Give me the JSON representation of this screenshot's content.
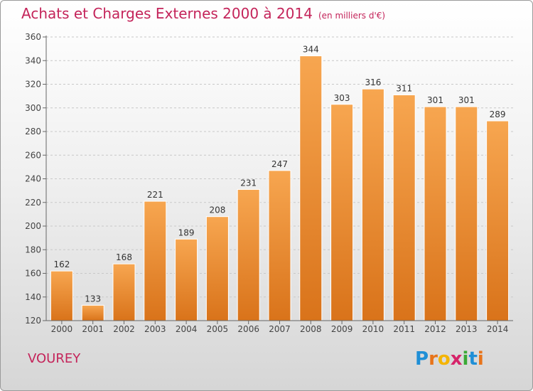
{
  "header": {
    "title": "Achats et Charges Externes 2000 à 2014",
    "subtitle": "(en milliers d'€)"
  },
  "footer": {
    "place": "VOUREY",
    "logo": "Proxiti"
  },
  "colors": {
    "accent": "#c4245a",
    "bar_light": "#f7a650",
    "bar_dark": "#d9731a"
  },
  "chart_data": {
    "type": "bar",
    "title": "Achats et Charges Externes 2000 à 2014",
    "subtitle": "(en milliers d'€)",
    "xlabel": "",
    "ylabel": "",
    "categories": [
      "2000",
      "2001",
      "2002",
      "2003",
      "2004",
      "2005",
      "2006",
      "2007",
      "2008",
      "2009",
      "2010",
      "2011",
      "2012",
      "2013",
      "2014"
    ],
    "values": [
      162,
      133,
      168,
      221,
      189,
      208,
      231,
      247,
      344,
      303,
      316,
      311,
      301,
      301,
      289
    ],
    "data_labels": [
      "162",
      "133",
      "168",
      "221",
      "189",
      "208",
      "231",
      "247",
      "344",
      "303",
      "316",
      "311",
      "301",
      "301",
      "289"
    ],
    "ylim": [
      120,
      360
    ],
    "yticks": [
      120,
      140,
      160,
      180,
      200,
      220,
      240,
      260,
      280,
      300,
      320,
      340,
      360
    ],
    "grid": true
  }
}
